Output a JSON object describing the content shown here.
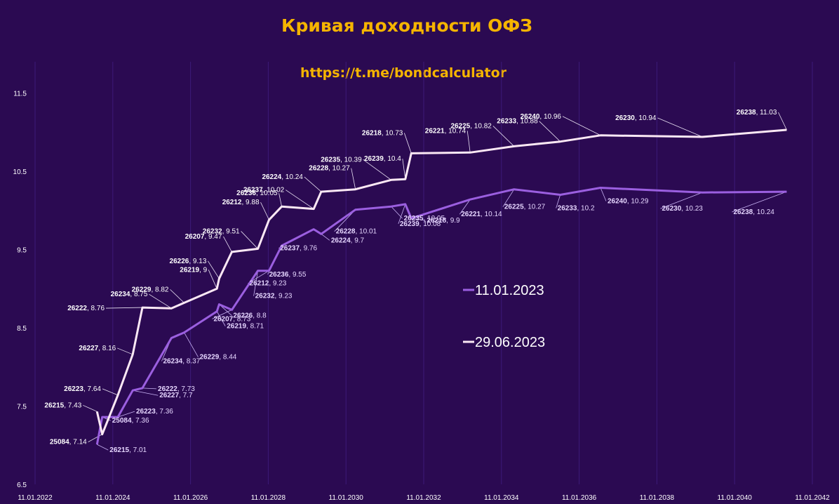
{
  "chart_data": {
    "type": "line",
    "title": "Кривая доходности ОФЗ",
    "subtitle": "https://t.me/bondcalculator",
    "xlabel": "",
    "ylabel": "",
    "xlim": [
      "2022-01-11",
      "2042-01-11"
    ],
    "ylim": [
      6.5,
      11.9
    ],
    "x_ticks": [
      "11.01.2022",
      "11.01.2024",
      "11.01.2026",
      "11.01.2028",
      "11.01.2030",
      "11.01.2032",
      "11.01.2034",
      "11.01.2036",
      "11.01.2038",
      "11.01.2040",
      "11.01.2042"
    ],
    "y_ticks": [
      6.5,
      7.5,
      8.5,
      9.5,
      10.5,
      11.5
    ],
    "grid": "vertical",
    "legend_position": "right",
    "series": [
      {
        "name": "11.01.2023",
        "color": "#9b5fe0",
        "points": [
          {
            "code": "26215",
            "date": "2023-08-16",
            "y": 7.01
          },
          {
            "code": "25084",
            "date": "2023-10-04",
            "y": 7.36
          },
          {
            "code": "26223",
            "date": "2024-02-28",
            "y": 7.36
          },
          {
            "code": "26227",
            "date": "2024-07-17",
            "y": 7.7
          },
          {
            "code": "26222",
            "date": "2024-10-16",
            "y": 7.73
          },
          {
            "code": "26234",
            "date": "2025-07-16",
            "y": 8.37
          },
          {
            "code": "26229",
            "date": "2025-11-12",
            "y": 8.44
          },
          {
            "code": "26219",
            "date": "2026-09-16",
            "y": 8.71
          },
          {
            "code": "26226",
            "date": "2026-10-07",
            "y": 8.8
          },
          {
            "code": "26207",
            "date": "2027-02-03",
            "y": 8.73
          },
          {
            "code": "26232",
            "date": "2027-10-06",
            "y": 9.23
          },
          {
            "code": "26212",
            "date": "2028-01-19",
            "y": 9.23
          },
          {
            "code": "26236",
            "date": "2028-05-17",
            "y": 9.55
          },
          {
            "code": "26237",
            "date": "2029-03-14",
            "y": 9.76
          },
          {
            "code": "26224",
            "date": "2029-05-23",
            "y": 9.7
          },
          {
            "code": "26228",
            "date": "2030-04-10",
            "y": 10.01
          },
          {
            "code": "26235",
            "date": "2031-03-12",
            "y": 10.05
          },
          {
            "code": "26239",
            "date": "2031-07-23",
            "y": 10.08
          },
          {
            "code": "26218",
            "date": "2031-09-17",
            "y": 9.9
          },
          {
            "code": "26221",
            "date": "2033-03-23",
            "y": 10.14
          },
          {
            "code": "26225",
            "date": "2034-05-10",
            "y": 10.27
          },
          {
            "code": "26233",
            "date": "2035-07-18",
            "y": 10.2
          },
          {
            "code": "26240",
            "date": "2036-07-30",
            "y": 10.29
          },
          {
            "code": "26230",
            "date": "2039-03-16",
            "y": 10.23
          },
          {
            "code": "26238",
            "date": "2041-05-15",
            "y": 10.24
          }
        ]
      },
      {
        "name": "29.06.2023",
        "color": "#fbe8f4",
        "points": [
          {
            "code": "26215",
            "date": "2023-08-16",
            "y": 7.43
          },
          {
            "code": "25084",
            "date": "2023-10-04",
            "y": 7.14
          },
          {
            "code": "26223",
            "date": "2024-02-28",
            "y": 7.64
          },
          {
            "code": "26227",
            "date": "2024-07-17",
            "y": 8.16
          },
          {
            "code": "26222",
            "date": "2024-10-16",
            "y": 8.76
          },
          {
            "code": "26234",
            "date": "2025-07-16",
            "y": 8.75
          },
          {
            "code": "26229",
            "date": "2025-11-12",
            "y": 8.82
          },
          {
            "code": "26219",
            "date": "2026-09-16",
            "y": 9.0
          },
          {
            "code": "26226",
            "date": "2026-10-07",
            "y": 9.13
          },
          {
            "code": "26207",
            "date": "2027-02-03",
            "y": 9.47
          },
          {
            "code": "26232",
            "date": "2027-10-06",
            "y": 9.51
          },
          {
            "code": "26212",
            "date": "2028-01-19",
            "y": 9.88
          },
          {
            "code": "26236",
            "date": "2028-05-17",
            "y": 10.05
          },
          {
            "code": "26237",
            "date": "2029-03-14",
            "y": 10.02
          },
          {
            "code": "26224",
            "date": "2029-05-23",
            "y": 10.24
          },
          {
            "code": "26228",
            "date": "2030-04-10",
            "y": 10.27
          },
          {
            "code": "26235",
            "date": "2031-03-12",
            "y": 10.39
          },
          {
            "code": "26239",
            "date": "2031-07-23",
            "y": 10.4
          },
          {
            "code": "26218",
            "date": "2031-09-17",
            "y": 10.73
          },
          {
            "code": "26221",
            "date": "2033-03-23",
            "y": 10.74
          },
          {
            "code": "26225",
            "date": "2034-05-10",
            "y": 10.82
          },
          {
            "code": "26233",
            "date": "2035-07-18",
            "y": 10.88
          },
          {
            "code": "26240",
            "date": "2036-07-30",
            "y": 10.96
          },
          {
            "code": "26230",
            "date": "2039-03-16",
            "y": 10.94
          },
          {
            "code": "26238",
            "date": "2041-05-15",
            "y": 11.03
          }
        ]
      }
    ]
  }
}
